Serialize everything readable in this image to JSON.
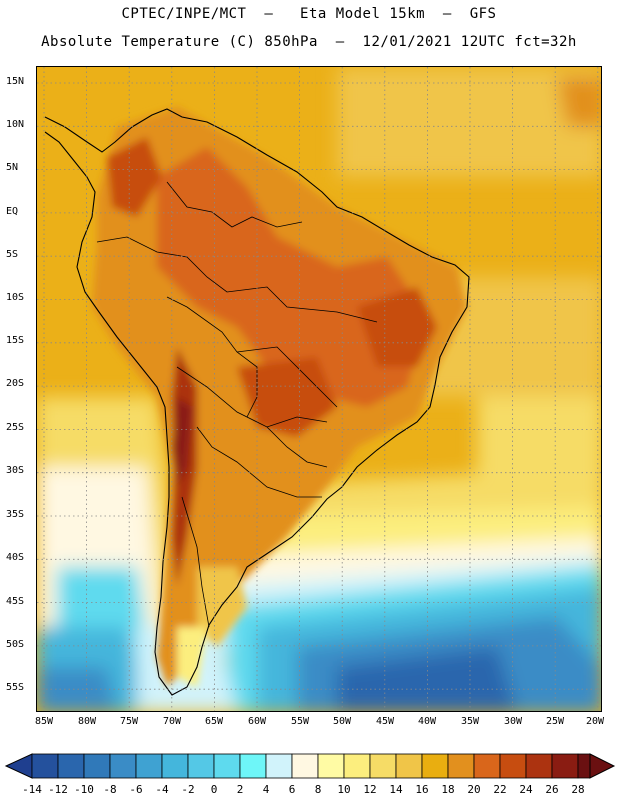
{
  "header": {
    "line1": "CPTEC/INPE/MCT  –   Eta Model 15km  –  GFS",
    "line2": "Absolute Temperature (C) 850hPa  –  12/01/2021 12UTC fct=32h"
  },
  "map": {
    "region": "South America",
    "lat_labels": [
      "15N",
      "10N",
      "5N",
      "EQ",
      "5S",
      "10S",
      "15S",
      "20S",
      "25S",
      "30S",
      "35S",
      "40S",
      "45S",
      "50S",
      "55S"
    ],
    "lon_labels": [
      "85W",
      "80W",
      "75W",
      "70W",
      "65W",
      "60W",
      "55W",
      "50W",
      "45W",
      "40W",
      "35W",
      "30W",
      "25W",
      "20W"
    ]
  },
  "legend": {
    "labels": [
      "-14",
      "-12",
      "-10",
      "-8",
      "-6",
      "-4",
      "-2",
      "0",
      "2",
      "4",
      "6",
      "8",
      "10",
      "12",
      "14",
      "16",
      "18",
      "20",
      "22",
      "24",
      "26",
      "28"
    ],
    "colors": [
      "#1f3f8f",
      "#24519d",
      "#2a66ad",
      "#3079b9",
      "#3a8cc6",
      "#3fa2d2",
      "#44b6dc",
      "#54c8e6",
      "#5edaee",
      "#6ef6f8",
      "#d1f3fb",
      "#fff8e2",
      "#fffba4",
      "#fcee7e",
      "#f6dc66",
      "#f0c548",
      "#e9ae10",
      "#e2901e",
      "#d9661b",
      "#c74d10",
      "#ac3310",
      "#8a1c12",
      "#6a1011"
    ]
  }
}
